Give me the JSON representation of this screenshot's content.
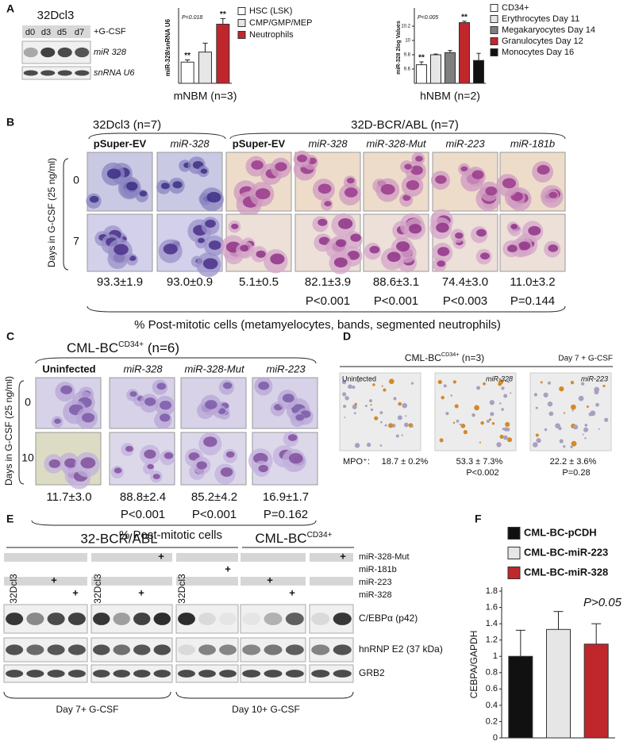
{
  "chart_data": [
    {
      "type": "bar",
      "title": "P<0.018",
      "ylabel": "miR-328/snRNA U6",
      "xlabel": "mNBM (n=3)",
      "categories": [
        "HSC (LSK)",
        "CMP/GMP/MEP",
        "Neutrophils"
      ],
      "values": [
        0.95,
        1.4,
        2.65
      ],
      "errors": [
        0.1,
        0.4,
        0.25
      ],
      "colors": [
        "#ffffff",
        "#e6e6e6",
        "#c0272d"
      ],
      "markers": [
        "**",
        null,
        "**"
      ],
      "ylim": [
        0,
        3.2
      ]
    },
    {
      "type": "bar",
      "title": "P<0.005",
      "ylabel": "miR-328 2log Values",
      "xlabel": "hNBM (n=2)",
      "categories": [
        "CD34+",
        "Erythrocytes Day 11",
        "Megakaryocytes Day 14",
        "Granulocytes Day 12",
        "Monocytes Day 16"
      ],
      "values": [
        9.66,
        9.8,
        9.83,
        10.25,
        9.72
      ],
      "errors": [
        0.04,
        0.01,
        0.03,
        0.02,
        0.1
      ],
      "colors": [
        "#ffffff",
        "#e6e6e6",
        "#7f7f7f",
        "#c0272d",
        "#111111"
      ],
      "markers": [
        "**",
        null,
        null,
        "**",
        null
      ],
      "ylim": [
        9.4,
        10.4
      ],
      "yticks": [
        9.6,
        9.8,
        10,
        10.2
      ]
    },
    {
      "type": "bar",
      "title": "P>0.05",
      "ylabel": "CEBPA/GAPDH",
      "categories": [
        "CML-BC-pCDH",
        "CML-BC-miR-223",
        "CML-BC-miR-328"
      ],
      "values": [
        1.0,
        1.33,
        1.15
      ],
      "errors": [
        0.32,
        0.22,
        0.25
      ],
      "colors": [
        "#111111",
        "#e6e6e6",
        "#c0272d"
      ],
      "ylim": [
        0,
        1.8
      ],
      "yticks": [
        0,
        0.2,
        0.4,
        0.6,
        0.8,
        1,
        1.2,
        1.4,
        1.6,
        1.8
      ]
    }
  ],
  "panel_labels": [
    "A",
    "B",
    "C",
    "D",
    "E",
    "F"
  ],
  "panel_a": {
    "blot_title": "32Dcl3",
    "lanes": [
      "d0",
      "d3",
      "d5",
      "d7"
    ],
    "treatment": "+G-CSF",
    "rows": [
      "miR 328",
      "snRNA U6"
    ]
  },
  "panel_b": {
    "group_1": "32Dcl3 (n=7)",
    "group_2": "32D-BCR/ABL (n=7)",
    "y_label": "Days in G-CSF (25 ng/ml)",
    "days": [
      "0",
      "7"
    ],
    "columns": [
      "pSuper-EV",
      "miR-328",
      "pSuper-EV",
      "miR-328",
      "miR-328-Mut",
      "miR-223",
      "miR-181b"
    ],
    "percent": [
      "93.3±1.9",
      "93.0±0.9",
      "5.1±0.5",
      "82.1±3.9",
      "88.6±3.1",
      "74.4±3.0",
      "11.0±3.2"
    ],
    "p_values": [
      "P<0.001",
      "P<0.001",
      "P<0.003",
      "P=0.144"
    ],
    "caption": "% Post-mitotic cells (metamyelocytes, bands, segmented neutrophils)"
  },
  "panel_c": {
    "title": "CML-BC",
    "title_sup": "CD34+",
    "title_rest": " (n=6)",
    "y_label": "Days in G-CSF (25 ng/ml)",
    "days": [
      "0",
      "10"
    ],
    "columns": [
      "Uninfected",
      "miR-328",
      "miR-328-Mut",
      "miR-223"
    ],
    "percent": [
      "11.7±3.0",
      "88.8±2.4",
      "85.2±4.2",
      "16.9±1.7"
    ],
    "p_values": [
      "P<0.001",
      "P<0.001",
      "P=0.162"
    ],
    "caption": "% Post-mitotic cells"
  },
  "panel_d": {
    "title": "CML-BC",
    "title_sup": "CD34+",
    "title_rest": " (n=3)",
    "condition": "Day 7 + G-CSF",
    "images": [
      "Uninfected",
      "miR-328",
      "miR-223"
    ],
    "mpo_label": "MPO⁺:",
    "values": [
      "18.7 ± 0.2%",
      "53.3 ± 7.3%",
      "22.2 ± 3.6%"
    ],
    "p_values": [
      "P<0.002",
      "P=0.28"
    ]
  },
  "panel_e": {
    "title_1": "32-BCR/ABL",
    "title_2": "CML-BC",
    "title_2_sup": "CD34+",
    "constructs": [
      "miR-328-Mut",
      "miR-181b",
      "miR-223",
      "miR-328"
    ],
    "plus": "+",
    "cell_line": "32Dcl3",
    "proteins": [
      "C/EBPα (p42)",
      "hnRNP E2 (37 kDa)",
      "GRB2"
    ],
    "footers": [
      "Day 7+ G-CSF",
      "Day 10+ G-CSF"
    ]
  }
}
